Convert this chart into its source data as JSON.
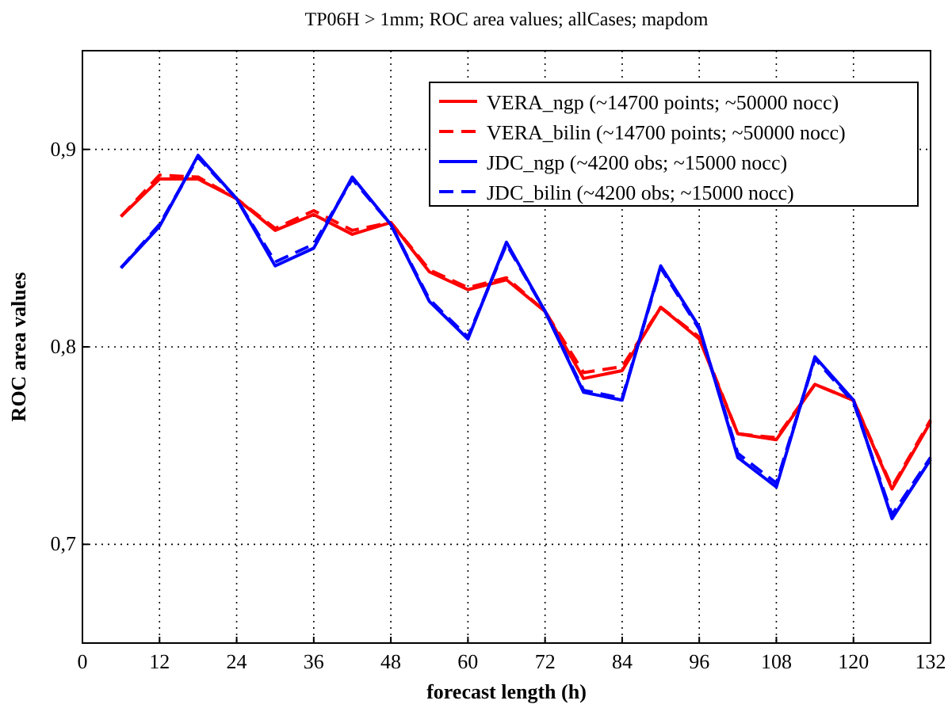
{
  "chart_data": {
    "type": "line",
    "title": "TP06H > 1mm;  ROC area values; allCases; mapdom",
    "xlabel": "forecast length (h)",
    "ylabel": "ROC area values",
    "x": [
      6,
      12,
      18,
      24,
      30,
      36,
      42,
      48,
      54,
      60,
      66,
      72,
      78,
      84,
      90,
      96,
      102,
      108,
      114,
      120,
      126,
      132
    ],
    "series": [
      {
        "name": "VERA_ngp (~14700 points; ~50000 nocc)",
        "color": "#ff0000",
        "line_style": "solid",
        "values": [
          0.866,
          0.885,
          0.885,
          0.875,
          0.859,
          0.867,
          0.857,
          0.863,
          0.838,
          0.829,
          0.834,
          0.818,
          0.784,
          0.788,
          0.82,
          0.804,
          0.756,
          0.753,
          0.781,
          0.773,
          0.728,
          0.762
        ]
      },
      {
        "name": "VERA_bilin (~14700 points; ~50000 nocc)",
        "color": "#ff0000",
        "line_style": "dashed",
        "values": [
          0.866,
          0.887,
          0.886,
          0.875,
          0.86,
          0.869,
          0.859,
          0.863,
          0.839,
          0.83,
          0.835,
          0.818,
          0.787,
          0.79,
          0.82,
          0.805,
          0.756,
          0.754,
          0.781,
          0.773,
          0.729,
          0.763
        ]
      },
      {
        "name": "JDC_ngp (~4200 obs; ~15000 nocc)",
        "color": "#0000ff",
        "line_style": "solid",
        "values": [
          0.84,
          0.861,
          0.897,
          0.875,
          0.841,
          0.85,
          0.886,
          0.862,
          0.823,
          0.804,
          0.853,
          0.818,
          0.777,
          0.773,
          0.841,
          0.81,
          0.744,
          0.729,
          0.795,
          0.773,
          0.713,
          0.743
        ]
      },
      {
        "name": "JDC_bilin (~4200 obs; ~15000 nocc)",
        "color": "#0000ff",
        "line_style": "dashed",
        "values": [
          0.84,
          0.862,
          0.896,
          0.875,
          0.843,
          0.852,
          0.885,
          0.862,
          0.824,
          0.805,
          0.852,
          0.818,
          0.778,
          0.774,
          0.84,
          0.809,
          0.746,
          0.731,
          0.794,
          0.772,
          0.715,
          0.744
        ]
      }
    ],
    "xlim": [
      0,
      132
    ],
    "xticks": [
      0,
      12,
      24,
      36,
      48,
      60,
      72,
      84,
      96,
      108,
      120,
      132
    ],
    "ylim": [
      0.65,
      0.95
    ],
    "yticks": [
      {
        "value": 0.7,
        "label": "0,7"
      },
      {
        "value": 0.8,
        "label": "0,8"
      },
      {
        "value": 0.9,
        "label": "0,9"
      }
    ],
    "grid": true,
    "legend": "top right"
  }
}
